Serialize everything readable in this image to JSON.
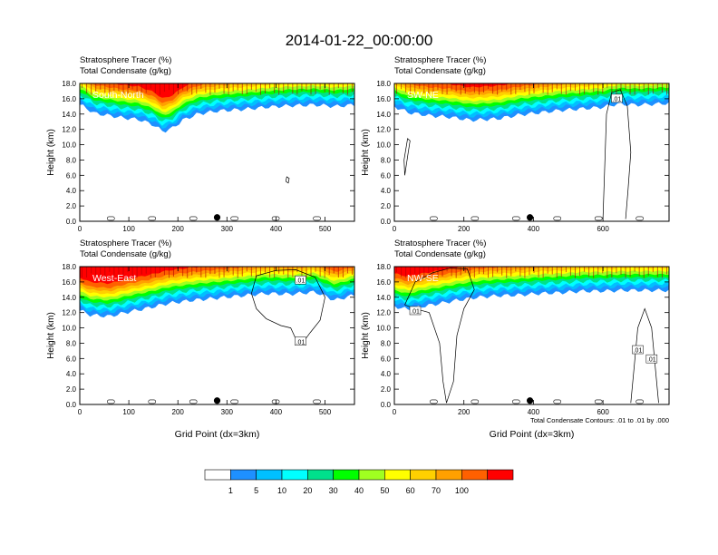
{
  "title": "2014-01-22_00:00:00",
  "chart_data": [
    {
      "type": "heatmap",
      "subtitle_lines": [
        "Stratosphere Tracer   (%)",
        "Total Condensate   (g/kg)"
      ],
      "panel_label": "South-North",
      "ylabel": "Height (km)",
      "xlabel": "",
      "xlim": [
        0,
        560
      ],
      "ylim": [
        0,
        18
      ],
      "xticks": [
        "0",
        "100",
        "200",
        "300",
        "400",
        "500"
      ],
      "xtick_values": [
        0,
        100,
        200,
        300,
        400,
        500
      ],
      "yticks": [
        "0.0",
        "2.0",
        "4.0",
        "6.0",
        "8.0",
        "10.0",
        "12.0",
        "14.0",
        "16.0",
        "18.0"
      ],
      "marker_x": 280,
      "tracer_bottom_profile": [
        [
          0,
          15.2
        ],
        [
          10,
          14.9
        ],
        [
          30,
          14.1
        ],
        [
          60,
          13.8
        ],
        [
          90,
          13.5
        ],
        [
          120,
          13.3
        ],
        [
          150,
          12.6
        ],
        [
          170,
          11.7
        ],
        [
          190,
          12.2
        ],
        [
          210,
          13.2
        ],
        [
          240,
          14.0
        ],
        [
          280,
          14.4
        ],
        [
          330,
          14.6
        ],
        [
          380,
          14.9
        ],
        [
          430,
          15.1
        ],
        [
          480,
          15.2
        ],
        [
          520,
          15.0
        ],
        [
          560,
          15.2
        ]
      ],
      "contour_labels": []
    },
    {
      "type": "heatmap",
      "subtitle_lines": [
        "Stratosphere Tracer   (%)",
        "Total Condensate   (g/kg)"
      ],
      "panel_label": "SW-NE",
      "ylabel": "Height (km)",
      "xlabel": "",
      "xlim": [
        0,
        790
      ],
      "ylim": [
        0,
        18
      ],
      "xticks": [
        "0",
        "200",
        "400",
        "600"
      ],
      "xtick_values": [
        0,
        200,
        400,
        600
      ],
      "yticks": [
        "0.0",
        "2.0",
        "4.0",
        "6.0",
        "8.0",
        "10.0",
        "12.0",
        "14.0",
        "16.0",
        "18.0"
      ],
      "marker_x": 390,
      "tracer_bottom_profile": [
        [
          0,
          15.0
        ],
        [
          40,
          14.2
        ],
        [
          100,
          13.8
        ],
        [
          160,
          13.6
        ],
        [
          220,
          13.2
        ],
        [
          300,
          13.4
        ],
        [
          360,
          13.9
        ],
        [
          420,
          14.2
        ],
        [
          480,
          14.5
        ],
        [
          540,
          14.7
        ],
        [
          600,
          14.9
        ],
        [
          640,
          15.3
        ],
        [
          700,
          15.2
        ],
        [
          790,
          15.4
        ]
      ],
      "contour_labels": [
        ".01"
      ]
    },
    {
      "type": "heatmap",
      "subtitle_lines": [
        "Stratosphere Tracer   (%)",
        "Total Condensate   (g/kg)"
      ],
      "panel_label": "West-East",
      "ylabel": "Height (km)",
      "xlabel": "Grid Point (dx=3km)",
      "xlim": [
        0,
        560
      ],
      "ylim": [
        0,
        18
      ],
      "xticks": [
        "0",
        "100",
        "200",
        "300",
        "400",
        "500"
      ],
      "xtick_values": [
        0,
        100,
        200,
        300,
        400,
        500
      ],
      "yticks": [
        "0.0",
        "2.0",
        "4.0",
        "6.0",
        "8.0",
        "10.0",
        "12.0",
        "14.0",
        "16.0",
        "18.0"
      ],
      "marker_x": 280,
      "tracer_bottom_profile": [
        [
          0,
          12.3
        ],
        [
          20,
          11.7
        ],
        [
          60,
          11.5
        ],
        [
          100,
          12.1
        ],
        [
          140,
          12.6
        ],
        [
          180,
          13.2
        ],
        [
          230,
          13.6
        ],
        [
          280,
          13.9
        ],
        [
          330,
          14.2
        ],
        [
          380,
          14.5
        ],
        [
          430,
          14.4
        ],
        [
          480,
          14.7
        ],
        [
          520,
          13.6
        ],
        [
          560,
          14.3
        ]
      ],
      "contour_labels": [
        ".01",
        ".01"
      ]
    },
    {
      "type": "heatmap",
      "subtitle_lines": [
        "Stratosphere Tracer   (%)",
        "Total Condensate   (g/kg)"
      ],
      "panel_label": "NW-SE",
      "ylabel": "Height (km)",
      "xlabel": "Grid Point (dx=3km)",
      "xlim": [
        0,
        790
      ],
      "ylim": [
        0,
        18
      ],
      "xticks": [
        "0",
        "200",
        "400",
        "600"
      ],
      "xtick_values": [
        0,
        200,
        400,
        600
      ],
      "yticks": [
        "0.0",
        "2.0",
        "4.0",
        "6.0",
        "8.0",
        "10.0",
        "12.0",
        "14.0",
        "16.0",
        "18.0"
      ],
      "marker_x": 390,
      "tracer_bottom_profile": [
        [
          0,
          12.8
        ],
        [
          40,
          12.4
        ],
        [
          80,
          12.8
        ],
        [
          120,
          13.1
        ],
        [
          180,
          13.6
        ],
        [
          240,
          14.0
        ],
        [
          300,
          14.2
        ],
        [
          360,
          14.3
        ],
        [
          420,
          14.5
        ],
        [
          480,
          14.6
        ],
        [
          540,
          14.8
        ],
        [
          600,
          14.8
        ],
        [
          660,
          14.9
        ],
        [
          720,
          14.9
        ],
        [
          790,
          14.9
        ]
      ],
      "contour_labels": [
        ".01",
        ".01",
        ".01"
      ],
      "footnote": "Total Condensate Contours: .01 to .01 by .000"
    }
  ],
  "colorbar": {
    "labels": [
      "1",
      "5",
      "10",
      "20",
      "30",
      "40",
      "50",
      "60",
      "70",
      "100"
    ],
    "colors": [
      "#ffffff",
      "#1e90ff",
      "#00c0ff",
      "#00ffff",
      "#00e08c",
      "#00ff00",
      "#a0ff20",
      "#ffff00",
      "#ffd000",
      "#ffa000",
      "#ff6000",
      "#ff0000"
    ]
  }
}
